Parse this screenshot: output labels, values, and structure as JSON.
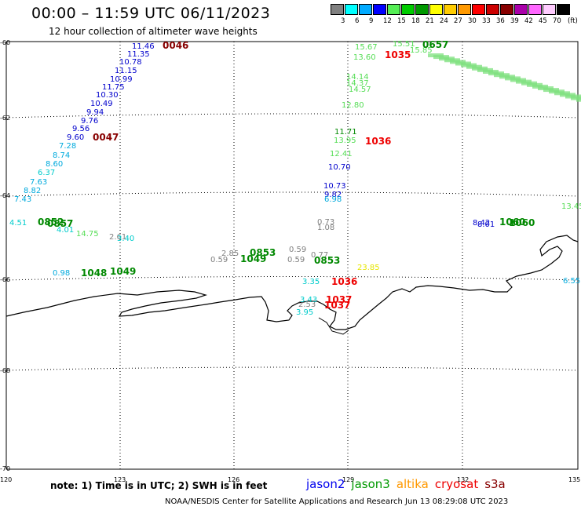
{
  "header": {
    "title": "00:00 – 11:59 UTC 06/11/2023",
    "subtitle": "12 hour collection of altimeter wave heights"
  },
  "legend": {
    "unit": "(ft)",
    "bins": [
      {
        "label": "3",
        "color": "#808080"
      },
      {
        "label": "6",
        "color": "#00ffff"
      },
      {
        "label": "9",
        "color": "#00aaff"
      },
      {
        "label": "12",
        "color": "#0000ff"
      },
      {
        "label": "15",
        "color": "#55ee55"
      },
      {
        "label": "18",
        "color": "#00cc00"
      },
      {
        "label": "21",
        "color": "#009900"
      },
      {
        "label": "24",
        "color": "#ffff00"
      },
      {
        "label": "27",
        "color": "#ffcc00"
      },
      {
        "label": "30",
        "color": "#ff9900"
      },
      {
        "label": "33",
        "color": "#ff0000"
      },
      {
        "label": "36",
        "color": "#cc0000"
      },
      {
        "label": "39",
        "color": "#880000"
      },
      {
        "label": "42",
        "color": "#aa00aa"
      },
      {
        "label": "45",
        "color": "#ff66ff"
      },
      {
        "label": "70",
        "color": "#ffccff"
      },
      {
        "label": "",
        "color": "#000000"
      }
    ]
  },
  "axes": {
    "lat_labels": [
      "-60",
      "-62",
      "-64",
      "-66",
      "-68",
      "-70"
    ],
    "lon_labels": [
      "120",
      "123",
      "126",
      "129",
      "132",
      "135"
    ]
  },
  "observations": [
    {
      "t": "11.46",
      "c": "#0000cc"
    },
    {
      "t": "11.35",
      "c": "#0000cc"
    },
    {
      "t": "10.78",
      "c": "#0000cc"
    },
    {
      "t": "11.15",
      "c": "#0000cc"
    },
    {
      "t": "10.99",
      "c": "#0000cc"
    },
    {
      "t": "11.75",
      "c": "#0000cc"
    },
    {
      "t": "10.30",
      "c": "#0000cc"
    },
    {
      "t": "10.49",
      "c": "#0000cc"
    },
    {
      "t": "9.94",
      "c": "#0000cc"
    },
    {
      "t": "9.76",
      "c": "#0000cc"
    },
    {
      "t": "9.56",
      "c": "#0000cc"
    },
    {
      "t": "9.60",
      "c": "#0000cc"
    },
    {
      "t": "7.28",
      "c": "#00aadd"
    },
    {
      "t": "8.74",
      "c": "#00aadd"
    },
    {
      "t": "8.60",
      "c": "#00aadd"
    },
    {
      "t": "6.37",
      "c": "#00cccc"
    },
    {
      "t": "7.63",
      "c": "#00aadd"
    },
    {
      "t": "8.82",
      "c": "#00aadd"
    },
    {
      "t": "7.43",
      "c": "#00aadd"
    },
    {
      "t": "15.67",
      "c": "#55dd55"
    },
    {
      "t": "15.51",
      "c": "#55dd55"
    },
    {
      "t": "15.85",
      "c": "#55dd55"
    },
    {
      "t": "13.60",
      "c": "#55dd55"
    },
    {
      "t": "14.14",
      "c": "#55dd55"
    },
    {
      "t": "14.37",
      "c": "#55dd55"
    },
    {
      "t": "14.57",
      "c": "#55dd55"
    },
    {
      "t": "12.80",
      "c": "#55dd55"
    },
    {
      "t": "11.71",
      "c": "#008800"
    },
    {
      "t": "13.95",
      "c": "#55dd55"
    },
    {
      "t": "12.41",
      "c": "#55dd55"
    },
    {
      "t": "10.70",
      "c": "#0000cc"
    },
    {
      "t": "10.73",
      "c": "#0000cc"
    },
    {
      "t": "9.82",
      "c": "#0000cc"
    },
    {
      "t": "6.98",
      "c": "#00aadd"
    },
    {
      "t": "0.73",
      "c": "#808080"
    },
    {
      "t": "1.08",
      "c": "#808080"
    },
    {
      "t": "0.59",
      "c": "#808080"
    },
    {
      "t": "0.77",
      "c": "#808080"
    },
    {
      "t": "0.59",
      "c": "#808080"
    },
    {
      "t": "23.85",
      "c": "#e6e600"
    },
    {
      "t": "3.35",
      "c": "#00cccc"
    },
    {
      "t": "2.53",
      "c": "#808080"
    },
    {
      "t": "3.43",
      "c": "#00cccc"
    },
    {
      "t": "3.95",
      "c": "#00cccc"
    },
    {
      "t": "2.85",
      "c": "#808080"
    },
    {
      "t": "0.59",
      "c": "#808080"
    },
    {
      "t": "2.61",
      "c": "#808080"
    },
    {
      "t": "3.40",
      "c": "#00cccc"
    },
    {
      "t": "14.75",
      "c": "#55dd55"
    },
    {
      "t": "4.51",
      "c": "#00cccc"
    },
    {
      "t": "4.01",
      "c": "#00cccc"
    },
    {
      "t": "0.98",
      "c": "#00aadd"
    },
    {
      "t": "8.42",
      "c": "#0000cc"
    },
    {
      "t": "8.01",
      "c": "#0000cc"
    },
    {
      "t": "6.55",
      "c": "#00aadd"
    },
    {
      "t": "13.45",
      "c": "#55dd55"
    }
  ],
  "passes": [
    {
      "t": "0046",
      "c": "#880000"
    },
    {
      "t": "0047",
      "c": "#880000"
    },
    {
      "t": "1035",
      "c": "#ee0000"
    },
    {
      "t": "0657",
      "c": "#008800"
    },
    {
      "t": "1036",
      "c": "#ee0000"
    },
    {
      "t": "1036",
      "c": "#ee0000"
    },
    {
      "t": "1037",
      "c": "#ee0000"
    },
    {
      "t": "1037",
      "c": "#ee0000"
    },
    {
      "t": "0853",
      "c": "#008800"
    },
    {
      "t": "0853",
      "c": "#008800"
    },
    {
      "t": "1049",
      "c": "#008800"
    },
    {
      "t": "1049",
      "c": "#008800"
    },
    {
      "t": "1048",
      "c": "#008800"
    },
    {
      "t": "0852",
      "c": "#008800"
    },
    {
      "t": "0857",
      "c": "#008800"
    },
    {
      "t": "1060",
      "c": "#008800"
    },
    {
      "t": "1060",
      "c": "#008800"
    }
  ],
  "footer": {
    "note": "note: 1) Time is in UTC; 2) SWH is in feet",
    "satellites": [
      {
        "name": "jason2",
        "color": "#0000ee"
      },
      {
        "name": "jason3",
        "color": "#009900"
      },
      {
        "name": "altika",
        "color": "#ff9900"
      },
      {
        "name": "cryosat",
        "color": "#ee0000"
      },
      {
        "name": "s3a",
        "color": "#880000"
      }
    ],
    "credit": "NOAA/NESDIS Center for Satellite Applications and Research    Jun 13 08:29:08 UTC 2023"
  }
}
